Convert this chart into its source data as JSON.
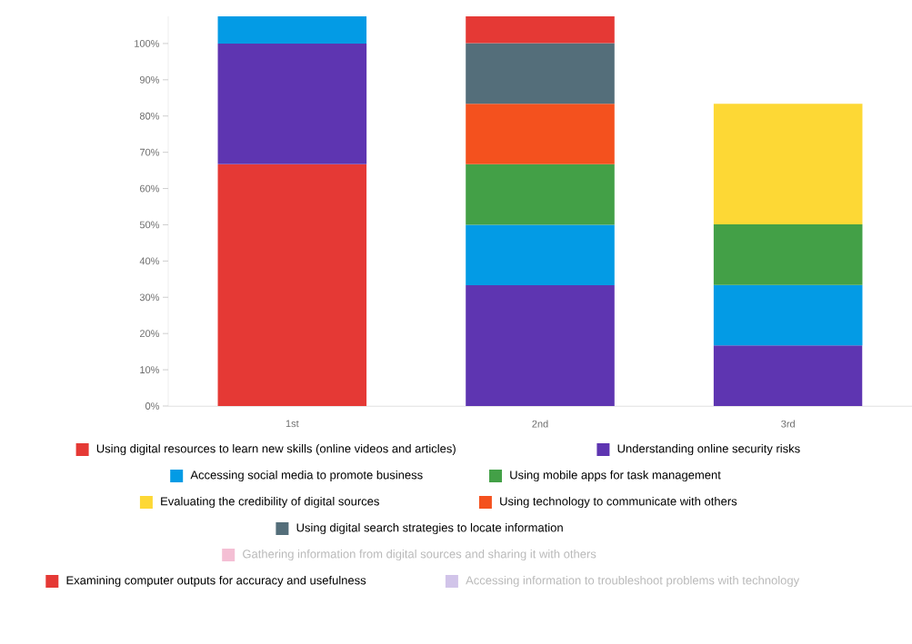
{
  "chart_data": {
    "type": "bar",
    "stacked": true,
    "categories": [
      "1st",
      "2nd",
      "3rd"
    ],
    "ylim": [
      0,
      107.5
    ],
    "yticks": [
      {
        "value": 0,
        "label": "0%"
      },
      {
        "value": 10,
        "label": "10%"
      },
      {
        "value": 20,
        "label": "20%"
      },
      {
        "value": 30,
        "label": "30%"
      },
      {
        "value": 40,
        "label": "40%"
      },
      {
        "value": 50,
        "label": "50%"
      },
      {
        "value": 60,
        "label": "60%"
      },
      {
        "value": 70,
        "label": "70%"
      },
      {
        "value": 80,
        "label": "80%"
      },
      {
        "value": 90,
        "label": "90%"
      },
      {
        "value": 100,
        "label": "100%"
      }
    ],
    "legend": "bottom",
    "series": [
      {
        "name": "Using digital resources to learn new skills (online videos and articles)",
        "color": "#e53935",
        "values": [
          66.7,
          null,
          null
        ]
      },
      {
        "name": "Understanding online security risks",
        "color": "#5e35b1",
        "values": [
          33.3,
          33.3,
          16.7
        ]
      },
      {
        "name": "Accessing social media to promote business",
        "color": "#039be5",
        "values": [
          7.5,
          16.7,
          16.7
        ]
      },
      {
        "name": "Using mobile apps for task management",
        "color": "#43a047",
        "values": [
          null,
          16.7,
          16.7
        ]
      },
      {
        "name": "Evaluating the credibility of digital sources",
        "color": "#fdd835",
        "values": [
          null,
          null,
          33.3
        ]
      },
      {
        "name": "Using technology to communicate with others",
        "color": "#f4511e",
        "values": [
          null,
          16.7,
          null
        ]
      },
      {
        "name": "Using digital search strategies to locate information",
        "color": "#546e7a",
        "values": [
          null,
          16.7,
          null
        ]
      },
      {
        "name": "Gathering information from digital sources and sharing it with others",
        "color": "#f4bfd4",
        "values": [
          null,
          null,
          null
        ]
      },
      {
        "name": "Examining computer outputs for accuracy and usefulness",
        "color": "#e53935",
        "values": [
          null,
          7.5,
          null
        ]
      },
      {
        "name": "Accessing information to troubleshoot problems with technology",
        "color": "#d1c4e9",
        "values": [
          null,
          null,
          null
        ]
      }
    ]
  }
}
